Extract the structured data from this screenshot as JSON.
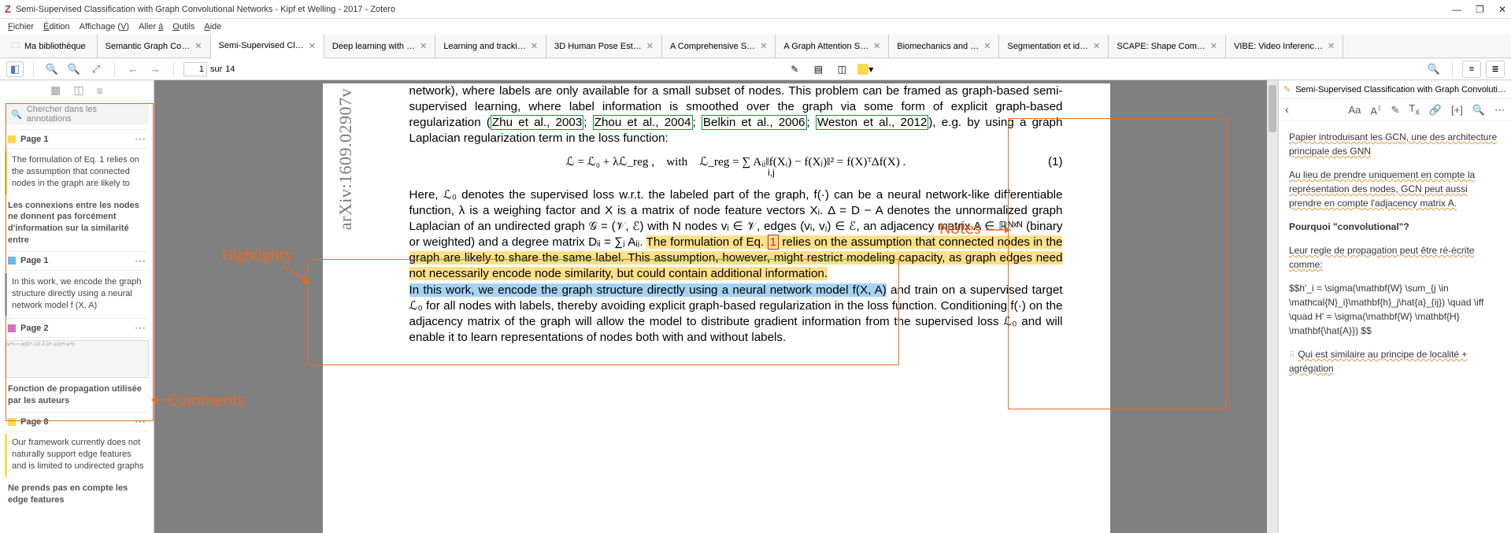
{
  "window": {
    "title": "Semi-Supervised Classification with Graph Convolutional Networks - Kipf et Welling - 2017 - Zotero"
  },
  "menu": {
    "items": [
      "Fichier",
      "Édition",
      "Affichage (V)",
      "Aller à",
      "Outils",
      "Aide"
    ]
  },
  "library_tab": {
    "label": "Ma bibliothèque"
  },
  "tabs": [
    {
      "label": "Semantic Graph Co…",
      "active": false
    },
    {
      "label": "Semi-Supervised Cl…",
      "active": true
    },
    {
      "label": "Deep learning with …",
      "active": false
    },
    {
      "label": "Learning and tracki…",
      "active": false
    },
    {
      "label": "3D Human Pose Est…",
      "active": false
    },
    {
      "label": "A Comprehensive S…",
      "active": false
    },
    {
      "label": "A Graph Attention S…",
      "active": false
    },
    {
      "label": "Biomechanics and …",
      "active": false
    },
    {
      "label": "Segmentation et id…",
      "active": false
    },
    {
      "label": "SCAPE: Shape Com…",
      "active": false
    },
    {
      "label": "VIBE: Video Inferenc…",
      "active": false
    }
  ],
  "pager": {
    "current": "1",
    "sep": "sur",
    "total": "14"
  },
  "search_placeholder": "Chercher dans les annotations",
  "annotations": [
    {
      "type": "header",
      "page": "Page 1",
      "color": "#ffd84d"
    },
    {
      "type": "quote",
      "color": "#ffd84d",
      "text": "The formulation of Eq. 1 relies on the assumption that connected nodes in the graph are likely to"
    },
    {
      "type": "comment",
      "text": "Les connexions entre les nodes ne donnent pas forcément d'information sur la similarité entre"
    },
    {
      "type": "header",
      "page": "Page 1",
      "color": "#6fb5e7"
    },
    {
      "type": "quote",
      "color": "#6fb5e7",
      "text": "In this work, we encode the graph structure directly using a neural network model f (X, A)"
    },
    {
      "type": "header",
      "page": "Page 2",
      "color": "#d96fc4"
    },
    {
      "type": "image",
      "preview": "w^n = σ((D^-1/2 Â D^-1/2)^l w^l)"
    },
    {
      "type": "comment",
      "text": "Fonction de propagation utilisée par les auteurs"
    },
    {
      "type": "header",
      "page": "Page 8",
      "color": "#ffd84d"
    },
    {
      "type": "quote",
      "color": "#ffd84d",
      "text": "Our framework currently does not naturally support edge features and is limited to undirected graphs"
    },
    {
      "type": "comment",
      "text": "Ne prends pas en compte les edge features"
    }
  ],
  "pdf": {
    "arxiv": "arXiv:1609.02907v",
    "para1a": "network), where labels are only available for a small subset of nodes. This problem can be framed as graph-based semi-supervised learning, where label information is smoothed over the graph via some form of explicit graph-based regularization (",
    "cite1": "Zhu et al., 2003",
    "cite2": "Zhou et al., 2004",
    "cite3": "Belkin et al., 2006",
    "cite4": "Weston et al., 2012",
    "para1b": "), e.g. by using a graph Laplacian regularization term in the loss function:",
    "equation": "ℒ = ℒ₀ + λℒ_reg , with ℒ_reg = ∑ Aᵢⱼ‖f(Xᵢ) − f(Xⱼ)‖² = f(X)ᵀΔf(X) .",
    "equation_sub": "i,j",
    "eqnum": "(1)",
    "para2a": "Here, ℒ₀ denotes the supervised loss w.r.t. the labeled part of the graph, f(·) can be a neural network-like differentiable function, λ is a weighing factor and X is a matrix of node feature vectors Xᵢ. Δ = D − A denotes the unnormalized graph Laplacian of an undirected graph 𝒢 = (𝒱, ℰ) with N nodes vᵢ ∈ 𝒱, edges (vᵢ, vⱼ) ∈ ℰ, an adjacency matrix A ∈ ℝᴺˣᴺ (binary or weighted) and a degree matrix Dᵢᵢ = ∑ⱼ Aᵢⱼ. ",
    "hl_yellow": "The formulation of Eq. 1 relies on the assumption that connected nodes in the graph are likely to share the same label. This assumption, however, might restrict modeling capacity, as graph edges need not necessarily encode node similarity, but could contain additional information.",
    "hl_blue": "In this work, we encode the graph structure directly using a neural network model f(X, A)",
    "para3": " and train on a supervised target ℒ₀ for all nodes with labels, thereby avoiding explicit graph-based regularization in the loss function. Conditioning f(·) on the adjacency matrix of the graph will allow the model to distribute gradient information from the supervised loss ℒ₀ and will enable it to learn representations of nodes both with and without labels."
  },
  "notes": {
    "title": "Semi-Supervised Classification with Graph Convolutional Net…",
    "p1": "Papier introduisant les GCN, une des architecture principale des GNN",
    "p2": "Au lieu de prendre uniquement en compte la représentation des nodes, GCN peut aussi prendre en compte l'adjacency matrix A.",
    "q": "Pourquoi \"convolutional\"?",
    "p3": "Leur regle de propagation peut être ré-écrite comme:",
    "math": "$$h'_i = \\sigma(\\mathbf{W} \\sum_{j \\in \\mathcal{N}_i}\\mathbf{h}_j\\hat{a}_{ij}) \\quad \\iff \\quad H' = \\sigma(\\mathbf{W} \\mathbf{H} \\mathbf{\\hat{A}}) $$",
    "p4": "Qui est similaire au principe de localité + agrégation"
  },
  "overlay": {
    "highlights": "Highlights",
    "comments": "Comments",
    "notes": "Notes"
  },
  "colors": {
    "orange": "#ea6a1f",
    "yellow_hl": "#ffe08a",
    "blue_hl": "#a7d3f3",
    "cite_green": "#0b9b34"
  }
}
